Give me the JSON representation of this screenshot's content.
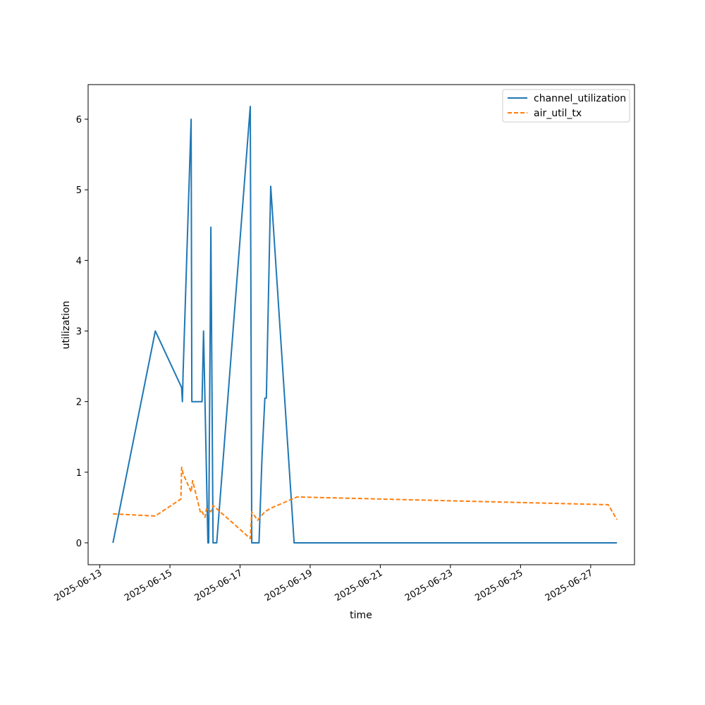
{
  "chart_data": {
    "type": "line",
    "xlabel": "time",
    "ylabel": "utilization",
    "xlim": [
      "2025-06-12T16:00",
      "2025-06-28T06:00"
    ],
    "ylim": [
      -0.31,
      6.49
    ],
    "grid": false,
    "legend_position": "top-right",
    "x_ticks": [
      "2025-06-13",
      "2025-06-15",
      "2025-06-17",
      "2025-06-19",
      "2025-06-21",
      "2025-06-23",
      "2025-06-25",
      "2025-06-27"
    ],
    "y_ticks": [
      "0",
      "1",
      "2",
      "3",
      "4",
      "5",
      "6"
    ],
    "series": [
      {
        "name": "channel_utilization",
        "color": "#1f77b4",
        "style": "solid",
        "points": [
          [
            "2025-06-13T09:00",
            0.0
          ],
          [
            "2025-06-14T14:00",
            3.0
          ],
          [
            "2025-06-15T08:00",
            2.2
          ],
          [
            "2025-06-15T08:30",
            2.0
          ],
          [
            "2025-06-15T09:00",
            2.4
          ],
          [
            "2025-06-15T14:30",
            6.0
          ],
          [
            "2025-06-15T15:00",
            2.0
          ],
          [
            "2025-06-15T22:00",
            2.0
          ],
          [
            "2025-06-15T23:00",
            3.0
          ],
          [
            "2025-06-16T02:00",
            0.0
          ],
          [
            "2025-06-16T02:30",
            0.0
          ],
          [
            "2025-06-16T04:00",
            4.47
          ],
          [
            "2025-06-16T05:30",
            0.0
          ],
          [
            "2025-06-16T08:00",
            0.0
          ],
          [
            "2025-06-17T07:00",
            6.18
          ],
          [
            "2025-06-17T08:00",
            0.0
          ],
          [
            "2025-06-17T13:00",
            0.0
          ],
          [
            "2025-06-17T15:00",
            1.2
          ],
          [
            "2025-06-17T17:00",
            2.05
          ],
          [
            "2025-06-17T18:00",
            2.05
          ],
          [
            "2025-06-17T21:00",
            5.05
          ],
          [
            "2025-06-18T13:00",
            0.0
          ],
          [
            "2025-06-27T18:00",
            0.0
          ]
        ]
      },
      {
        "name": "air_util_tx",
        "color": "#ff7f0e",
        "style": "dashed",
        "points": [
          [
            "2025-06-13T09:00",
            0.41
          ],
          [
            "2025-06-14T14:00",
            0.38
          ],
          [
            "2025-06-15T07:30",
            0.62
          ],
          [
            "2025-06-15T08:00",
            1.07
          ],
          [
            "2025-06-15T09:00",
            0.98
          ],
          [
            "2025-06-15T14:30",
            0.72
          ],
          [
            "2025-06-15T15:30",
            0.88
          ],
          [
            "2025-06-15T21:00",
            0.42
          ],
          [
            "2025-06-15T22:00",
            0.44
          ],
          [
            "2025-06-16T00:00",
            0.36
          ],
          [
            "2025-06-16T01:00",
            0.48
          ],
          [
            "2025-06-16T04:00",
            0.44
          ],
          [
            "2025-06-16T05:30",
            0.53
          ],
          [
            "2025-06-17T07:00",
            0.06
          ],
          [
            "2025-06-17T08:00",
            0.44
          ],
          [
            "2025-06-17T12:00",
            0.32
          ],
          [
            "2025-06-17T17:00",
            0.44
          ],
          [
            "2025-06-17T21:00",
            0.49
          ],
          [
            "2025-06-18T15:00",
            0.65
          ],
          [
            "2025-06-27T12:00",
            0.54
          ],
          [
            "2025-06-27T18:00",
            0.33
          ]
        ]
      }
    ]
  }
}
